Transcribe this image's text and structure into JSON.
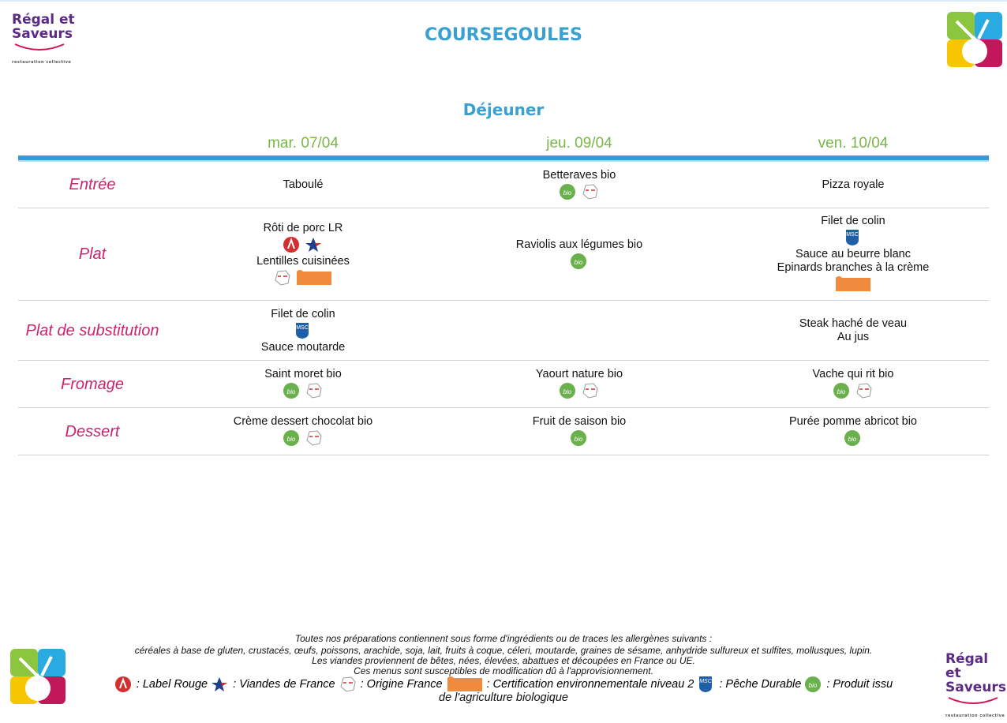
{
  "header": {
    "title": "COURSEGOULES",
    "meal": "Déjeuner",
    "logo": {
      "line1": "Régal et",
      "line2": "Saveurs",
      "tagline": "restauration collective"
    }
  },
  "icons": {
    "bio": "bio",
    "msc": "MSC"
  },
  "table": {
    "days": [
      "mar. 07/04",
      "jeu. 09/04",
      "ven. 10/04"
    ],
    "rows": [
      {
        "course": "Entrée",
        "cells": [
          [
            "Taboulé"
          ],
          [
            "Betteraves bio"
          ],
          [
            "Pizza royale"
          ]
        ]
      },
      {
        "course": "Plat",
        "cells": [
          [
            "Rôti de porc LR",
            "Lentilles cuisinées"
          ],
          [
            "Raviolis aux légumes bio"
          ],
          [
            "Filet de colin",
            "Sauce au beurre blanc",
            "Epinards branches à la crème"
          ]
        ]
      },
      {
        "course": "Plat de substitution",
        "cells": [
          [
            "Filet de colin",
            "Sauce moutarde"
          ],
          [],
          [
            "Steak haché de veau",
            "Au jus"
          ]
        ]
      },
      {
        "course": "Fromage",
        "cells": [
          [
            "Saint moret bio"
          ],
          [
            "Yaourt nature bio"
          ],
          [
            "Vache qui rit bio"
          ]
        ]
      },
      {
        "course": "Dessert",
        "cells": [
          [
            "Crème dessert chocolat bio"
          ],
          [
            "Fruit de saison bio"
          ],
          [
            "Purée pomme abricot bio"
          ]
        ]
      }
    ]
  },
  "footer": {
    "lines": [
      "Toutes nos préparations contiennent sous forme d'ingrédients ou de traces les allergènes suivants :",
      "céréales à base de gluten, crustacés, œufs, poissons, arachide, soja, lait, fruits à coque, céleri, moutarde, graines de sésame, anhydride sulfureux et sulfites, mollusques, lupin.",
      "Les viandes proviennent de bêtes, nées, élevées, abattues et découpées en France ou UE.",
      "Ces menus sont susceptibles de modification dû à l'approvisionnement."
    ],
    "legend": [
      ": Label Rouge",
      ": Viandes de France",
      ": Origine France",
      ": Certification environnementale niveau 2",
      ": Pêche Durable",
      ": Produit issu"
    ],
    "legend_tail": "de l'agriculture biologique"
  }
}
